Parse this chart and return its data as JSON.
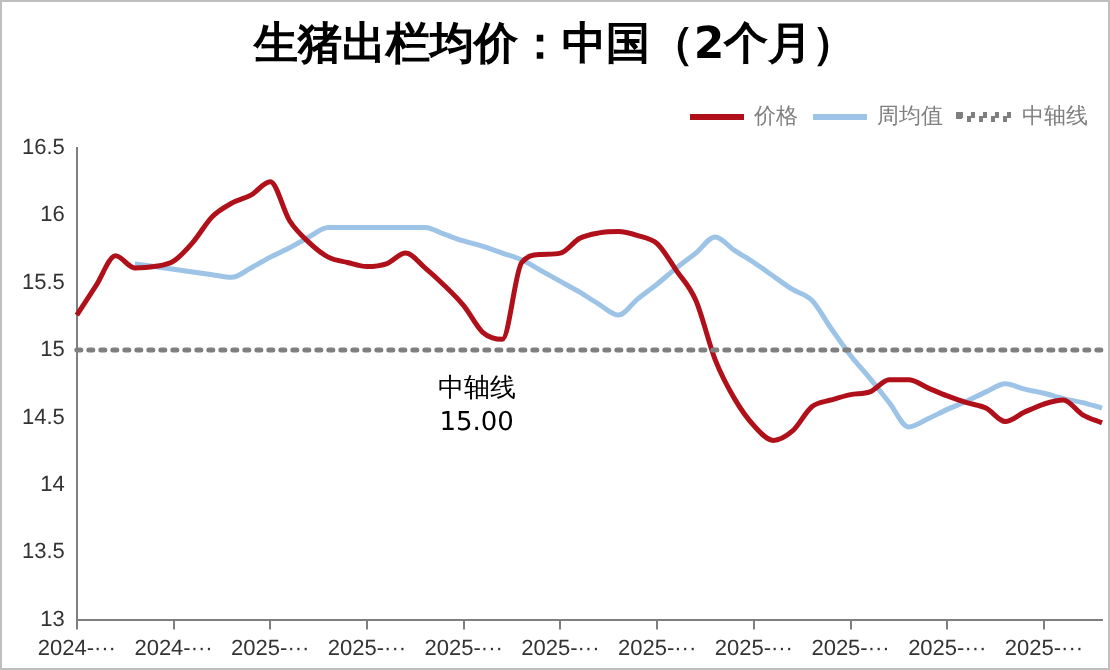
{
  "chart_data": {
    "type": "line",
    "title": "生猪出栏均价：中国（2个月）",
    "categories": [
      "2024-···",
      null,
      null,
      null,
      null,
      "2024-···",
      null,
      null,
      null,
      null,
      "2025-···",
      null,
      null,
      null,
      null,
      "2025-···",
      null,
      null,
      null,
      null,
      "2025-···",
      null,
      null,
      null,
      null,
      "2025-···",
      null,
      null,
      null,
      null,
      "2025-···",
      null,
      null,
      null,
      null,
      "2025-···",
      null,
      null,
      null,
      null,
      "2025-···",
      null,
      null,
      null,
      null,
      "2025-···",
      null,
      null,
      null,
      null,
      "2025-···",
      null,
      null,
      null
    ],
    "ylim": [
      13,
      16.5
    ],
    "yticks": [
      13,
      13.5,
      14,
      14.5,
      15,
      15.5,
      16,
      16.5
    ],
    "series": [
      {
        "name": "价格",
        "color": "#b0101a",
        "values": [
          15.26,
          15.48,
          15.7,
          15.61,
          15.62,
          15.66,
          15.8,
          15.99,
          16.09,
          16.15,
          16.25,
          15.96,
          15.8,
          15.69,
          15.65,
          15.62,
          15.64,
          15.72,
          15.61,
          15.48,
          15.33,
          15.13,
          15.08,
          15.65,
          15.71,
          15.72,
          15.83,
          15.87,
          15.88,
          15.85,
          15.79,
          15.59,
          15.37,
          14.93,
          14.64,
          14.44,
          14.33,
          14.4,
          14.58,
          14.63,
          14.67,
          14.69,
          14.78,
          14.78,
          14.72,
          14.66,
          14.61,
          14.57,
          14.47,
          14.54,
          14.6,
          14.63,
          14.52,
          14.46
        ]
      },
      {
        "name": "周均值",
        "color": "#9dc3e6",
        "values": [
          null,
          null,
          null,
          15.64,
          15.62,
          15.6,
          15.58,
          15.56,
          15.54,
          15.61,
          15.69,
          15.76,
          15.84,
          15.91,
          15.91,
          15.91,
          15.91,
          15.91,
          15.91,
          15.86,
          15.81,
          15.77,
          15.72,
          15.67,
          15.59,
          15.51,
          15.43,
          15.34,
          15.26,
          15.38,
          15.49,
          15.61,
          15.72,
          15.84,
          15.74,
          15.65,
          15.55,
          15.45,
          15.37,
          15.16,
          14.96,
          14.79,
          14.61,
          14.43,
          14.49,
          14.56,
          14.62,
          14.69,
          14.75,
          14.71,
          14.68,
          14.64,
          14.61,
          14.57
        ]
      }
    ],
    "ref_lines": [
      {
        "axis": "y",
        "value": 15,
        "label": "中轴线",
        "color": "#7f7f7f",
        "line_style": "dotted"
      }
    ],
    "annotations": [
      "中轴线\n15.00"
    ],
    "legend": "top right",
    "grid": false,
    "marker": "none",
    "line_style": "solid"
  }
}
